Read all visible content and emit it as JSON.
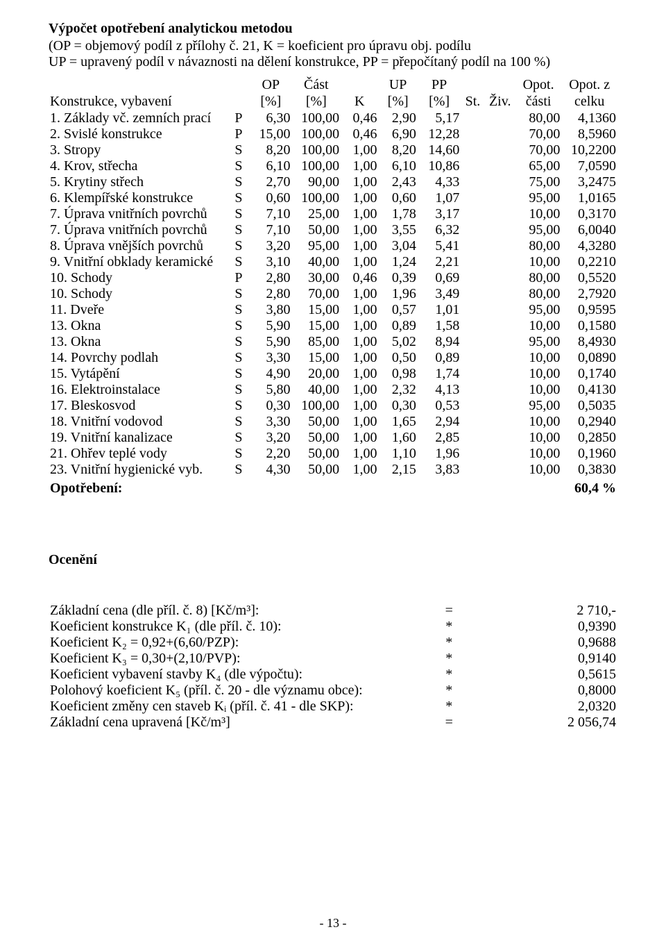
{
  "header": {
    "title": "Výpočet opotřebení analytickou metodou",
    "subtitle1": "(OP = objemový podíl z přílohy č. 21, K = koeficient pro úpravu obj. podílu",
    "subtitle2": "UP = upravený podíl v návaznosti na dělení konstrukce, PP = přepočítaný podíl na 100 %)"
  },
  "tableHeader": {
    "name": "Konstrukce, vybavení",
    "op_top": "OP",
    "op_bot": "[%]",
    "cast_top": "Část",
    "cast_bot": "[%]",
    "k": "K",
    "up_top": "UP",
    "up_bot": "[%]",
    "pp_top": "PP",
    "pp_bot": "[%]",
    "st": "St.",
    "ziv": "Živ.",
    "opot_top": "Opot.",
    "opot_bot": "části",
    "opotz_top": "Opot. z",
    "opotz_bot": "celku"
  },
  "rows": [
    {
      "name": "1. Základy vč. zemních prací",
      "st": "P",
      "op": "6,30",
      "cast": "100,00",
      "k": "0,46",
      "up": "2,90",
      "pp": "5,17",
      "stc": "",
      "ziv": "",
      "opot": "80,00",
      "opotz": "4,1360"
    },
    {
      "name": "2. Svislé konstrukce",
      "st": "P",
      "op": "15,00",
      "cast": "100,00",
      "k": "0,46",
      "up": "6,90",
      "pp": "12,28",
      "stc": "",
      "ziv": "",
      "opot": "70,00",
      "opotz": "8,5960"
    },
    {
      "name": "3. Stropy",
      "st": "S",
      "op": "8,20",
      "cast": "100,00",
      "k": "1,00",
      "up": "8,20",
      "pp": "14,60",
      "stc": "",
      "ziv": "",
      "opot": "70,00",
      "opotz": "10,2200"
    },
    {
      "name": "4. Krov, střecha",
      "st": "S",
      "op": "6,10",
      "cast": "100,00",
      "k": "1,00",
      "up": "6,10",
      "pp": "10,86",
      "stc": "",
      "ziv": "",
      "opot": "65,00",
      "opotz": "7,0590"
    },
    {
      "name": "5. Krytiny střech",
      "st": "S",
      "op": "2,70",
      "cast": "90,00",
      "k": "1,00",
      "up": "2,43",
      "pp": "4,33",
      "stc": "",
      "ziv": "",
      "opot": "75,00",
      "opotz": "3,2475"
    },
    {
      "name": "6. Klempířské konstrukce",
      "st": "S",
      "op": "0,60",
      "cast": "100,00",
      "k": "1,00",
      "up": "0,60",
      "pp": "1,07",
      "stc": "",
      "ziv": "",
      "opot": "95,00",
      "opotz": "1,0165"
    },
    {
      "name": "7. Úprava vnitřních povrchů",
      "st": "S",
      "op": "7,10",
      "cast": "25,00",
      "k": "1,00",
      "up": "1,78",
      "pp": "3,17",
      "stc": "",
      "ziv": "",
      "opot": "10,00",
      "opotz": "0,3170"
    },
    {
      "name": "7. Úprava vnitřních povrchů",
      "st": "S",
      "op": "7,10",
      "cast": "50,00",
      "k": "1,00",
      "up": "3,55",
      "pp": "6,32",
      "stc": "",
      "ziv": "",
      "opot": "95,00",
      "opotz": "6,0040"
    },
    {
      "name": "8. Úprava vnějších povrchů",
      "st": "S",
      "op": "3,20",
      "cast": "95,00",
      "k": "1,00",
      "up": "3,04",
      "pp": "5,41",
      "stc": "",
      "ziv": "",
      "opot": "80,00",
      "opotz": "4,3280"
    },
    {
      "name": "9. Vnitřní obklady keramické",
      "st": "S",
      "op": "3,10",
      "cast": "40,00",
      "k": "1,00",
      "up": "1,24",
      "pp": "2,21",
      "stc": "",
      "ziv": "",
      "opot": "10,00",
      "opotz": "0,2210"
    },
    {
      "name": "10. Schody",
      "st": "P",
      "op": "2,80",
      "cast": "30,00",
      "k": "0,46",
      "up": "0,39",
      "pp": "0,69",
      "stc": "",
      "ziv": "",
      "opot": "80,00",
      "opotz": "0,5520"
    },
    {
      "name": "10. Schody",
      "st": "S",
      "op": "2,80",
      "cast": "70,00",
      "k": "1,00",
      "up": "1,96",
      "pp": "3,49",
      "stc": "",
      "ziv": "",
      "opot": "80,00",
      "opotz": "2,7920"
    },
    {
      "name": "11. Dveře",
      "st": "S",
      "op": "3,80",
      "cast": "15,00",
      "k": "1,00",
      "up": "0,57",
      "pp": "1,01",
      "stc": "",
      "ziv": "",
      "opot": "95,00",
      "opotz": "0,9595"
    },
    {
      "name": "13. Okna",
      "st": "S",
      "op": "5,90",
      "cast": "15,00",
      "k": "1,00",
      "up": "0,89",
      "pp": "1,58",
      "stc": "",
      "ziv": "",
      "opot": "10,00",
      "opotz": "0,1580"
    },
    {
      "name": "13. Okna",
      "st": "S",
      "op": "5,90",
      "cast": "85,00",
      "k": "1,00",
      "up": "5,02",
      "pp": "8,94",
      "stc": "",
      "ziv": "",
      "opot": "95,00",
      "opotz": "8,4930"
    },
    {
      "name": "14. Povrchy podlah",
      "st": "S",
      "op": "3,30",
      "cast": "15,00",
      "k": "1,00",
      "up": "0,50",
      "pp": "0,89",
      "stc": "",
      "ziv": "",
      "opot": "10,00",
      "opotz": "0,0890"
    },
    {
      "name": "15. Vytápění",
      "st": "S",
      "op": "4,90",
      "cast": "20,00",
      "k": "1,00",
      "up": "0,98",
      "pp": "1,74",
      "stc": "",
      "ziv": "",
      "opot": "10,00",
      "opotz": "0,1740"
    },
    {
      "name": "16. Elektroinstalace",
      "st": "S",
      "op": "5,80",
      "cast": "40,00",
      "k": "1,00",
      "up": "2,32",
      "pp": "4,13",
      "stc": "",
      "ziv": "",
      "opot": "10,00",
      "opotz": "0,4130"
    },
    {
      "name": "17. Bleskosvod",
      "st": "S",
      "op": "0,30",
      "cast": "100,00",
      "k": "1,00",
      "up": "0,30",
      "pp": "0,53",
      "stc": "",
      "ziv": "",
      "opot": "95,00",
      "opotz": "0,5035"
    },
    {
      "name": "18. Vnitřní vodovod",
      "st": "S",
      "op": "3,30",
      "cast": "50,00",
      "k": "1,00",
      "up": "1,65",
      "pp": "2,94",
      "stc": "",
      "ziv": "",
      "opot": "10,00",
      "opotz": "0,2940"
    },
    {
      "name": "19. Vnitřní kanalizace",
      "st": "S",
      "op": "3,20",
      "cast": "50,00",
      "k": "1,00",
      "up": "1,60",
      "pp": "2,85",
      "stc": "",
      "ziv": "",
      "opot": "10,00",
      "opotz": "0,2850"
    },
    {
      "name": "21. Ohřev teplé vody",
      "st": "S",
      "op": "2,20",
      "cast": "50,00",
      "k": "1,00",
      "up": "1,10",
      "pp": "1,96",
      "stc": "",
      "ziv": "",
      "opot": "10,00",
      "opotz": "0,1960"
    },
    {
      "name": "23. Vnitřní hygienické vyb.",
      "st": "S",
      "op": "4,30",
      "cast": "50,00",
      "k": "1,00",
      "up": "2,15",
      "pp": "3,83",
      "stc": "",
      "ziv": "",
      "opot": "10,00",
      "opotz": "0,3830"
    }
  ],
  "summary": {
    "label": "Opotřebení:",
    "value": "60,4 %"
  },
  "ocenTitle": "Ocenění",
  "calc": [
    {
      "lbl": "Základní cena (dle příl. č. 8) [Kč/m³]:",
      "sym": "=",
      "val": "2 710,-"
    },
    {
      "lbl": "Koeficient konstrukce K₁ (dle příl. č. 10):",
      "sym": "*",
      "val": "0,9390"
    },
    {
      "lbl": "Koeficient K₂ = 0,92+(6,60/PZP):",
      "sym": "*",
      "val": "0,9688"
    },
    {
      "lbl": "Koeficient K₃ = 0,30+(2,10/PVP):",
      "sym": "*",
      "val": "0,9140"
    },
    {
      "lbl": "Koeficient vybavení stavby K₄ (dle výpočtu):",
      "sym": "*",
      "val": "0,5615"
    },
    {
      "lbl": "Polohový koeficient K₅ (příl. č. 20 - dle významu obce):",
      "sym": "*",
      "val": "0,8000"
    },
    {
      "lbl": "Koeficient změny cen staveb Kᵢ (příl. č. 41 - dle SKP):",
      "sym": "*",
      "val": "2,0320"
    },
    {
      "lbl": "Základní cena upravená [Kč/m³]",
      "sym": "=",
      "val": "2 056,74"
    }
  ],
  "footer": "- 13 -"
}
